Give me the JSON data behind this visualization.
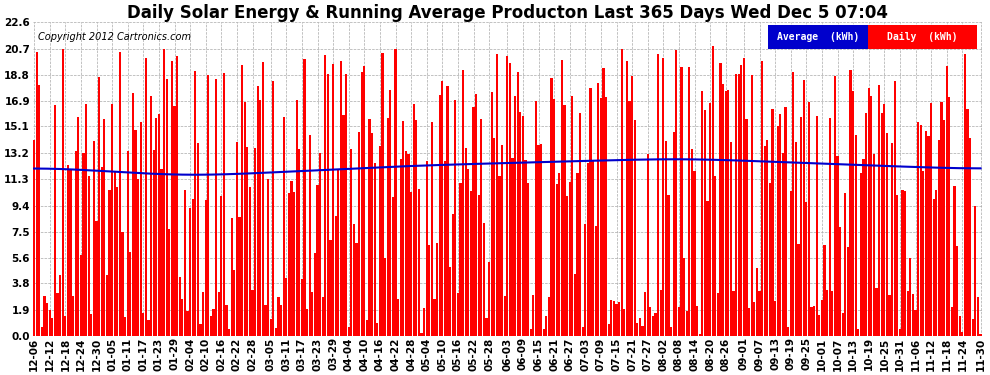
{
  "title": "Daily Solar Energy & Running Average Producton Last 365 Days Wed Dec 5 07:04",
  "copyright": "Copyright 2012 Cartronics.com",
  "legend_labels": [
    "Average  (kWh)",
    "Daily  (kWh)"
  ],
  "legend_colors": [
    "#0000cc",
    "#ff0000"
  ],
  "bar_color": "#ff0000",
  "line_color": "#0000cc",
  "background_color": "#ffffff",
  "grid_color": "#aaaaaa",
  "ylim": [
    0.0,
    22.6
  ],
  "yticks": [
    0.0,
    1.9,
    3.8,
    5.6,
    7.5,
    9.4,
    11.3,
    13.2,
    15.1,
    16.9,
    18.8,
    20.7,
    22.6
  ],
  "n_bars": 365,
  "title_fontsize": 12,
  "tick_fontsize": 7.5
}
